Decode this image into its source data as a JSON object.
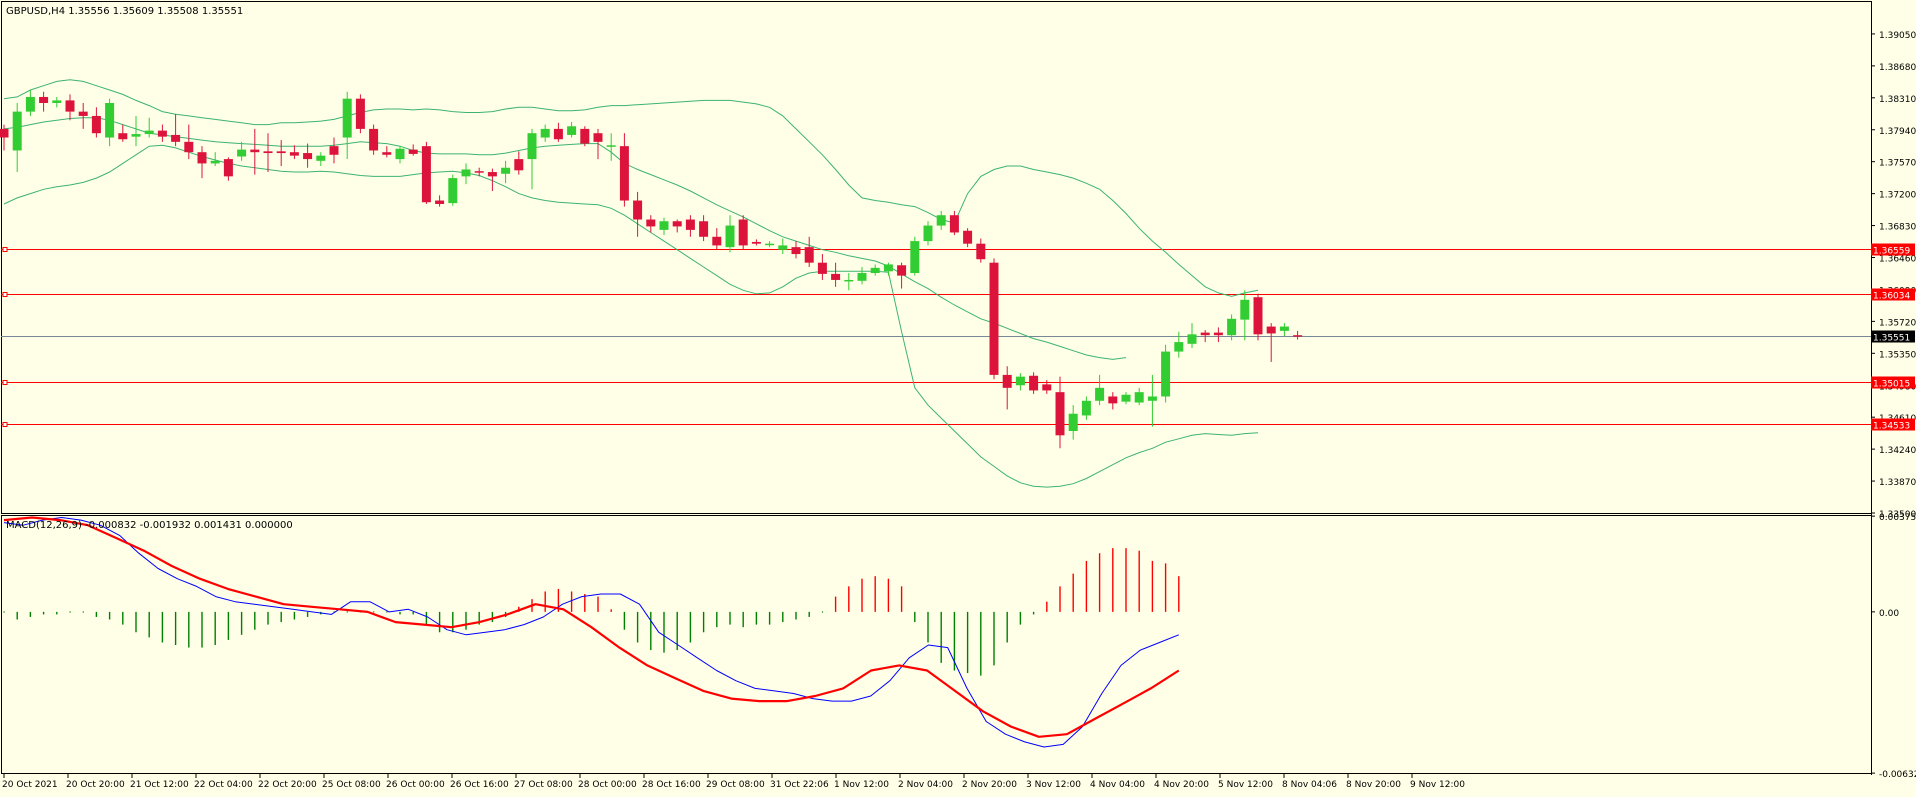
{
  "main_header": "GBPUSD,H4  1.35556 1.35609 1.35508 1.35551",
  "macd_header": "MACD(12,26,9) -0.000832 -0.001932 0.001431 0.000000",
  "colors": {
    "background": "#ffffe8",
    "frame": "#000000",
    "bull_candle": "#32cd32",
    "bear_candle": "#dc143c",
    "bollinger": "#3cb371",
    "level_line": "#ff0000",
    "bid_line": "#778899",
    "macd_line": "#0000ff",
    "signal_line": "#ff0000",
    "hist_positive": "#ff0000",
    "hist_negative": "#008000"
  },
  "chart_data": [
    {
      "type": "candlestick",
      "symbol": "GBPUSD",
      "timeframe": "H4",
      "ylim": [
        1.335,
        1.3942
      ],
      "y_ticks": [
        "1.39050",
        "1.38680",
        "1.38310",
        "1.37940",
        "1.37570",
        "1.37200",
        "1.36830",
        "1.36460",
        "1.36090",
        "1.35720",
        "1.35350",
        "1.34980",
        "1.34610",
        "1.34240",
        "1.33870",
        "1.33500"
      ],
      "x_tick_labels": [
        "20 Oct 2021",
        "20 Oct 20:00",
        "21 Oct 12:00",
        "22 Oct 04:00",
        "22 Oct 20:00",
        "25 Oct 08:00",
        "26 Oct 00:00",
        "26 Oct 16:00",
        "27 Oct 08:00",
        "28 Oct 00:00",
        "28 Oct 16:00",
        "29 Oct 08:00",
        "31 Oct 22:06",
        "1 Nov 12:00",
        "2 Nov 04:00",
        "2 Nov 20:00",
        "3 Nov 12:00",
        "4 Nov 04:00",
        "4 Nov 20:00",
        "5 Nov 12:00",
        "8 Nov 04:06",
        "8 Nov 20:00",
        "9 Nov 12:00"
      ],
      "horizontal_levels": [
        {
          "value": 1.36559,
          "label": "1.36559"
        },
        {
          "value": 1.36034,
          "label": "1.36034"
        },
        {
          "value": 1.35015,
          "label": "1.35015"
        },
        {
          "value": 1.34533,
          "label": "1.34533"
        }
      ],
      "bid": {
        "value": 1.35551,
        "label": "1.35551"
      },
      "candles": [
        [
          1.3795,
          1.3785,
          1.38,
          1.377
        ],
        [
          1.377,
          1.3815,
          1.3825,
          1.3745
        ],
        [
          1.3815,
          1.3832,
          1.384,
          1.381
        ],
        [
          1.3832,
          1.3825,
          1.3838,
          1.3815
        ],
        [
          1.3825,
          1.3828,
          1.3832,
          1.382
        ],
        [
          1.3828,
          1.3815,
          1.3835,
          1.3805
        ],
        [
          1.3815,
          1.381,
          1.3825,
          1.3795
        ],
        [
          1.381,
          1.379,
          1.382,
          1.3785
        ],
        [
          1.3785,
          1.3825,
          1.383,
          1.3775
        ],
        [
          1.379,
          1.3783,
          1.38,
          1.378
        ],
        [
          1.3786,
          1.3789,
          1.381,
          1.3775
        ],
        [
          1.3789,
          1.3793,
          1.3808,
          1.3785
        ],
        [
          1.3793,
          1.3786,
          1.38,
          1.378
        ],
        [
          1.3788,
          1.378,
          1.3812,
          1.3775
        ],
        [
          1.378,
          1.3768,
          1.38,
          1.376
        ],
        [
          1.3768,
          1.3755,
          1.3775,
          1.3738
        ],
        [
          1.3755,
          1.3758,
          1.3768,
          1.3752
        ],
        [
          1.376,
          1.374,
          1.3762,
          1.3735
        ],
        [
          1.3763,
          1.3771,
          1.378,
          1.3758
        ],
        [
          1.3771,
          1.3768,
          1.3795,
          1.3742
        ],
        [
          1.3769,
          1.3767,
          1.379,
          1.3745
        ],
        [
          1.3769,
          1.3767,
          1.3782,
          1.3752
        ],
        [
          1.3768,
          1.3764,
          1.3776,
          1.376
        ],
        [
          1.3767,
          1.376,
          1.3778,
          1.375
        ],
        [
          1.3758,
          1.3764,
          1.3768,
          1.3752
        ],
        [
          1.3775,
          1.3765,
          1.3785,
          1.3755
        ],
        [
          1.3785,
          1.383,
          1.3838,
          1.376
        ],
        [
          1.383,
          1.3795,
          1.3835,
          1.379
        ],
        [
          1.3795,
          1.377,
          1.38,
          1.3765
        ],
        [
          1.3768,
          1.3765,
          1.3775,
          1.3762
        ],
        [
          1.376,
          1.3772,
          1.3775,
          1.3755
        ],
        [
          1.3771,
          1.3766,
          1.3777,
          1.3764
        ],
        [
          1.3775,
          1.371,
          1.378,
          1.3708
        ],
        [
          1.3712,
          1.3708,
          1.3718,
          1.3705
        ],
        [
          1.3709,
          1.3738,
          1.3742,
          1.3706
        ],
        [
          1.374,
          1.3748,
          1.3755,
          1.3731
        ],
        [
          1.3746,
          1.3745,
          1.375,
          1.374
        ],
        [
          1.3745,
          1.374,
          1.3749,
          1.3723
        ],
        [
          1.3743,
          1.375,
          1.3758,
          1.3732
        ],
        [
          1.376,
          1.3747,
          1.3769,
          1.3742
        ],
        [
          1.376,
          1.379,
          1.3795,
          1.3725
        ],
        [
          1.3785,
          1.3795,
          1.38,
          1.378
        ],
        [
          1.3795,
          1.3783,
          1.3802,
          1.378
        ],
        [
          1.3788,
          1.3798,
          1.3803,
          1.3785
        ],
        [
          1.3795,
          1.3778,
          1.3798,
          1.3775
        ],
        [
          1.379,
          1.378,
          1.3795,
          1.376
        ],
        [
          1.3776,
          1.3776,
          1.379,
          1.3758
        ],
        [
          1.3775,
          1.3712,
          1.379,
          1.3705
        ],
        [
          1.3712,
          1.369,
          1.3722,
          1.367
        ],
        [
          1.369,
          1.3682,
          1.3695,
          1.3675
        ],
        [
          1.3678,
          1.3688,
          1.3692,
          1.3672
        ],
        [
          1.3688,
          1.3682,
          1.369,
          1.3675
        ],
        [
          1.369,
          1.3678,
          1.3695,
          1.367
        ],
        [
          1.3688,
          1.367,
          1.3695,
          1.3665
        ],
        [
          1.367,
          1.366,
          1.368,
          1.3655
        ],
        [
          1.3658,
          1.3683,
          1.3695,
          1.3652
        ],
        [
          1.369,
          1.366,
          1.3695,
          1.3655
        ],
        [
          1.3664,
          1.3662,
          1.3667,
          1.366
        ],
        [
          1.3662,
          1.3662,
          1.3665,
          1.3658
        ],
        [
          1.3655,
          1.366,
          1.3668,
          1.365
        ],
        [
          1.3658,
          1.365,
          1.3665,
          1.3645
        ],
        [
          1.3658,
          1.364,
          1.367,
          1.3635
        ],
        [
          1.364,
          1.3627,
          1.365,
          1.362
        ],
        [
          1.3627,
          1.362,
          1.364,
          1.3612
        ],
        [
          1.362,
          1.362,
          1.3628,
          1.3608
        ],
        [
          1.3619,
          1.3628,
          1.3635,
          1.3615
        ],
        [
          1.3628,
          1.3634,
          1.3638,
          1.3625
        ],
        [
          1.363,
          1.3638,
          1.364,
          1.3625
        ],
        [
          1.3637,
          1.3625,
          1.364,
          1.361
        ],
        [
          1.3628,
          1.3665,
          1.367,
          1.3625
        ],
        [
          1.3665,
          1.3683,
          1.3688,
          1.366
        ],
        [
          1.3683,
          1.3695,
          1.37,
          1.3678
        ],
        [
          1.3695,
          1.3675,
          1.37,
          1.3672
        ],
        [
          1.3677,
          1.3662,
          1.368,
          1.3658
        ],
        [
          1.3662,
          1.3644,
          1.3668,
          1.364
        ],
        [
          1.364,
          1.351,
          1.3645,
          1.3505
        ],
        [
          1.351,
          1.3495,
          1.352,
          1.347
        ],
        [
          1.3498,
          1.3508,
          1.3512,
          1.3492
        ],
        [
          1.3509,
          1.3492,
          1.3513,
          1.3488
        ],
        [
          1.3499,
          1.3492,
          1.3504,
          1.3488
        ],
        [
          1.349,
          1.344,
          1.3508,
          1.3425
        ],
        [
          1.3445,
          1.3465,
          1.3475,
          1.3435
        ],
        [
          1.3463,
          1.348,
          1.3485,
          1.3458
        ],
        [
          1.348,
          1.3495,
          1.351,
          1.3475
        ],
        [
          1.3485,
          1.3477,
          1.349,
          1.347
        ],
        [
          1.3479,
          1.3487,
          1.349,
          1.3476
        ],
        [
          1.3478,
          1.349,
          1.3495,
          1.3475
        ],
        [
          1.348,
          1.3485,
          1.351,
          1.345
        ],
        [
          1.3485,
          1.3537,
          1.3545,
          1.3478
        ],
        [
          1.3537,
          1.3548,
          1.356,
          1.353
        ],
        [
          1.3546,
          1.3557,
          1.357,
          1.3541
        ],
        [
          1.3559,
          1.3556,
          1.3562,
          1.3548
        ],
        [
          1.3559,
          1.3556,
          1.3565,
          1.3548
        ],
        [
          1.3556,
          1.3575,
          1.358,
          1.355
        ],
        [
          1.3574,
          1.3597,
          1.3608,
          1.355
        ],
        [
          1.36,
          1.3557,
          1.3604,
          1.355
        ],
        [
          1.3566,
          1.3558,
          1.357,
          1.3525
        ],
        [
          1.3561,
          1.3566,
          1.357,
          1.3555
        ],
        [
          1.3556,
          1.3555,
          1.3561,
          1.3551
        ]
      ],
      "bollinger_upper": [
        1.383,
        1.3832,
        1.384,
        1.3845,
        1.385,
        1.3852,
        1.385,
        1.3845,
        1.384,
        1.3835,
        1.3828,
        1.3822,
        1.3815,
        1.3812,
        1.381,
        1.3808,
        1.3806,
        1.3804,
        1.3802,
        1.38,
        1.38,
        1.3802,
        1.3802,
        1.3803,
        1.3804,
        1.3806,
        1.381,
        1.3814,
        1.3817,
        1.3818,
        1.3818,
        1.3817,
        1.3818,
        1.3817,
        1.3815,
        1.3814,
        1.3814,
        1.3815,
        1.3818,
        1.382,
        1.382,
        1.3818,
        1.3816,
        1.3816,
        1.3817,
        1.382,
        1.3822,
        1.3822,
        1.3823,
        1.3824,
        1.3825,
        1.3826,
        1.3827,
        1.3828,
        1.3828,
        1.3828,
        1.3826,
        1.3824,
        1.382,
        1.381,
        1.3795,
        1.378,
        1.3765,
        1.3748,
        1.373,
        1.3715,
        1.3712,
        1.371,
        1.3707,
        1.3705,
        1.3698,
        1.369,
        1.3686,
        1.372,
        1.374,
        1.3748,
        1.3752,
        1.3752,
        1.3748,
        1.3745,
        1.3742,
        1.3738,
        1.3732,
        1.3725,
        1.3712,
        1.3697,
        1.368,
        1.3665,
        1.3652,
        1.3638,
        1.3625,
        1.3612,
        1.3605,
        1.3601,
        1.3605,
        1.3608
      ],
      "bollinger_middle": [
        1.3795,
        1.3797,
        1.38,
        1.3803,
        1.3805,
        1.3807,
        1.3808,
        1.3808,
        1.3805,
        1.38,
        1.3795,
        1.379,
        1.3788,
        1.3786,
        1.3784,
        1.3782,
        1.378,
        1.3779,
        1.3778,
        1.3777,
        1.3776,
        1.3775,
        1.3775,
        1.3775,
        1.3775,
        1.3776,
        1.3778,
        1.378,
        1.3779,
        1.3778,
        1.3775,
        1.377,
        1.3767,
        1.3766,
        1.3766,
        1.3766,
        1.3765,
        1.3765,
        1.3767,
        1.377,
        1.3773,
        1.3775,
        1.3776,
        1.3777,
        1.3778,
        1.3778,
        1.3768,
        1.3755,
        1.3748,
        1.3742,
        1.3736,
        1.373,
        1.3723,
        1.3715,
        1.3707,
        1.37,
        1.3693,
        1.3685,
        1.3677,
        1.367,
        1.3665,
        1.366,
        1.3655,
        1.3652,
        1.3648,
        1.3645,
        1.3642,
        1.3636,
        1.3627,
        1.3618,
        1.361,
        1.36,
        1.3591,
        1.3583,
        1.3575,
        1.357,
        1.3564,
        1.3558,
        1.3552,
        1.3548,
        1.3543,
        1.3538,
        1.3533,
        1.353,
        1.3528,
        1.353
      ],
      "bollinger_lower": [
        1.3708,
        1.3715,
        1.372,
        1.3725,
        1.3728,
        1.373,
        1.3733,
        1.3738,
        1.3745,
        1.3755,
        1.3765,
        1.3775,
        1.3776,
        1.3773,
        1.3768,
        1.3763,
        1.3759,
        1.3755,
        1.3752,
        1.375,
        1.3748,
        1.3746,
        1.3745,
        1.3745,
        1.3746,
        1.3745,
        1.3743,
        1.3741,
        1.374,
        1.374,
        1.374,
        1.3742,
        1.3744,
        1.3745,
        1.3746,
        1.3744,
        1.3741,
        1.3735,
        1.3728,
        1.372,
        1.3715,
        1.3712,
        1.371,
        1.3709,
        1.3708,
        1.3707,
        1.3703,
        1.3695,
        1.3685,
        1.3675,
        1.3665,
        1.3655,
        1.3645,
        1.3635,
        1.3625,
        1.3615,
        1.3608,
        1.3604,
        1.3605,
        1.3612,
        1.3622,
        1.3628,
        1.363,
        1.363,
        1.363,
        1.363,
        1.363,
        1.3629,
        1.356,
        1.3495,
        1.3475,
        1.346,
        1.3445,
        1.343,
        1.3415,
        1.3404,
        1.3393,
        1.3385,
        1.3381,
        1.338,
        1.3381,
        1.3384,
        1.339,
        1.3398,
        1.3406,
        1.3414,
        1.342,
        1.3425,
        1.3432,
        1.3436,
        1.344,
        1.3442,
        1.3441,
        1.344,
        1.3442,
        1.3443
      ]
    },
    {
      "type": "macd",
      "params": "MACD(12,26,9)",
      "ylim": [
        -0.00632,
        0.00376
      ],
      "y_ticks": [
        "0.003755",
        "0.00",
        "-0.006325"
      ],
      "histogram": [
        0.0,
        -0.0003,
        -0.0002,
        -0.0001,
        -0.0001,
        0.0,
        0.0,
        -0.0002,
        -0.0003,
        -0.0005,
        -0.0008,
        -0.001,
        -0.0012,
        -0.0013,
        -0.0014,
        -0.0014,
        -0.0013,
        -0.0011,
        -0.0009,
        -0.0007,
        -0.0005,
        -0.0004,
        -0.0003,
        -0.0002,
        -0.0001,
        0.0,
        0.0,
        0.0,
        0.0,
        0.0,
        -0.0001,
        -0.0001,
        -0.0005,
        -0.0008,
        -0.0008,
        -0.0007,
        -0.0005,
        -0.0004,
        -0.0002,
        0.0002,
        0.0005,
        0.0008,
        0.0009,
        0.0008,
        0.0007,
        0.0006,
        0.0001,
        -0.0007,
        -0.0012,
        -0.0015,
        -0.0016,
        -0.0015,
        -0.0012,
        -0.0008,
        -0.0006,
        -0.0005,
        -0.0006,
        -0.0005,
        -0.0005,
        -0.0004,
        -0.0003,
        -0.0002,
        0.0,
        0.0006,
        0.001,
        0.0013,
        0.0014,
        0.0013,
        0.001,
        -0.0004,
        -0.0012,
        -0.002,
        -0.0023,
        -0.0024,
        -0.0025,
        -0.0021,
        -0.0012,
        -0.0005,
        -0.0001,
        0.0004,
        0.001,
        0.0015,
        0.002,
        0.0023,
        0.0025,
        0.0025,
        0.0024,
        0.002,
        0.0019,
        0.0014
      ],
      "macd": [
        0.0035,
        0.0034,
        0.0036,
        0.0037,
        0.0036,
        0.0034,
        0.003,
        0.0023,
        0.0017,
        0.0013,
        0.001,
        0.0006,
        0.0004,
        0.0003,
        0.0002,
        0.0001,
        0.0,
        -0.0001,
        0.0004,
        0.0004,
        0.0,
        0.0001,
        -0.0002,
        -0.0007,
        -0.0009,
        -0.0008,
        -0.0007,
        -0.0005,
        -0.0002,
        0.0003,
        0.0006,
        0.0007,
        0.0007,
        0.0003,
        -0.0008,
        -0.0013,
        -0.0018,
        -0.0023,
        -0.0027,
        -0.003,
        -0.0031,
        -0.0032,
        -0.0034,
        -0.0035,
        -0.0035,
        -0.0033,
        -0.0027,
        -0.0018,
        -0.0013,
        -0.0014,
        -0.003,
        -0.0043,
        -0.0048,
        -0.0051,
        -0.0053,
        -0.0052,
        -0.0045,
        -0.0032,
        -0.0021,
        -0.0015,
        -0.0012,
        -0.0009
      ],
      "signal": [
        0.0036,
        0.0037,
        0.0036,
        0.0034,
        0.0029,
        0.0024,
        0.0018,
        0.0013,
        0.0009,
        0.0006,
        0.0003,
        0.0002,
        0.0001,
        0.0,
        -0.0004,
        -0.0005,
        -0.0006,
        -0.0004,
        -0.0001,
        0.0003,
        0.0001,
        -0.0006,
        -0.0014,
        -0.0021,
        -0.0026,
        -0.0031,
        -0.0034,
        -0.0035,
        -0.0035,
        -0.0033,
        -0.003,
        -0.0023,
        -0.0021,
        -0.0023,
        -0.0031,
        -0.0039,
        -0.0045,
        -0.0049,
        -0.0048,
        -0.0042,
        -0.0036,
        -0.003,
        -0.0023
      ]
    }
  ]
}
